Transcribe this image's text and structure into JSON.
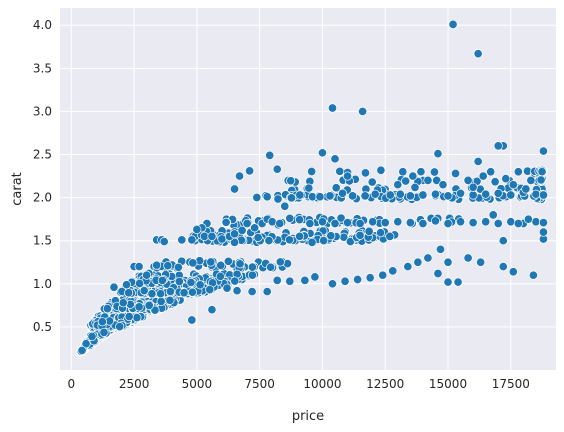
{
  "chart_data": {
    "type": "scatter",
    "title": "",
    "xlabel": "price",
    "ylabel": "carat",
    "xlim": [
      -450,
      19300
    ],
    "ylim": [
      0.0,
      4.2
    ],
    "xticks": [
      0,
      2500,
      5000,
      7500,
      10000,
      12500,
      15000,
      17500
    ],
    "yticks": [
      0.5,
      1.0,
      1.5,
      2.0,
      2.5,
      3.0,
      3.5,
      4.0
    ],
    "xtick_labels": [
      "0",
      "2500",
      "5000",
      "7500",
      "10000",
      "12500",
      "15000",
      "17500"
    ],
    "ytick_labels": [
      "0.5",
      "1.0",
      "1.5",
      "2.0",
      "2.5",
      "3.0",
      "3.5",
      "4.0"
    ],
    "grid": true,
    "legend": "none",
    "colors": {
      "background": "#eaeaf2",
      "grid": "#ffffff",
      "marker": "#1f77b4",
      "marker_edge": "#ffffff",
      "text": "#262626"
    },
    "points": [
      [
        15200,
        4.01
      ],
      [
        16200,
        3.67
      ],
      [
        10400,
        3.04
      ],
      [
        11600,
        3.0
      ],
      [
        10000,
        2.52
      ],
      [
        10500,
        2.45
      ],
      [
        7900,
        2.49
      ],
      [
        8200,
        2.33
      ],
      [
        6700,
        2.25
      ],
      [
        6500,
        2.1
      ],
      [
        7100,
        2.31
      ],
      [
        14600,
        2.51
      ],
      [
        17200,
        2.6
      ],
      [
        17000,
        2.6
      ],
      [
        16200,
        2.42
      ],
      [
        18800,
        2.54
      ],
      [
        11000,
        2.25
      ],
      [
        3400,
        1.51
      ],
      [
        3600,
        1.51
      ],
      [
        3700,
        1.49
      ],
      [
        4400,
        1.51
      ],
      [
        4800,
        1.51
      ],
      [
        5400,
        1.7
      ],
      [
        5200,
        1.65
      ],
      [
        5000,
        1.63
      ],
      [
        5300,
        1.55
      ],
      [
        5600,
        1.55
      ],
      [
        6000,
        1.52
      ],
      [
        6300,
        1.55
      ],
      [
        6500,
        1.58
      ],
      [
        6800,
        1.62
      ],
      [
        7000,
        1.7
      ],
      [
        7300,
        1.65
      ],
      [
        7600,
        1.7
      ],
      [
        7800,
        1.75
      ],
      [
        8000,
        1.72
      ],
      [
        8300,
        1.7
      ],
      [
        8700,
        1.76
      ],
      [
        7800,
        2.01
      ],
      [
        8500,
        1.9
      ],
      [
        9100,
        2.03
      ],
      [
        9600,
        2.01
      ],
      [
        9900,
        2.01
      ],
      [
        10300,
        2.02
      ],
      [
        10800,
        2.05
      ],
      [
        11200,
        2.02
      ],
      [
        11700,
        2.02
      ],
      [
        12100,
        2.04
      ],
      [
        12700,
        2.03
      ],
      [
        13100,
        2.04
      ],
      [
        13500,
        2.02
      ],
      [
        14000,
        2.03
      ],
      [
        14500,
        2.04
      ],
      [
        15000,
        2.02
      ],
      [
        15500,
        2.05
      ],
      [
        16000,
        2.03
      ],
      [
        16500,
        2.04
      ],
      [
        17000,
        2.05
      ],
      [
        17500,
        2.03
      ],
      [
        18000,
        2.06
      ],
      [
        18500,
        2.04
      ],
      [
        18800,
        2.03
      ],
      [
        13200,
        2.3
      ],
      [
        13600,
        2.25
      ],
      [
        14200,
        2.2
      ],
      [
        15300,
        2.28
      ],
      [
        15800,
        2.2
      ],
      [
        16400,
        2.25
      ],
      [
        16700,
        2.3
      ],
      [
        17300,
        2.22
      ],
      [
        17800,
        2.3
      ],
      [
        18300,
        2.2
      ],
      [
        13000,
        2.15
      ],
      [
        14800,
        2.15
      ],
      [
        16000,
        2.12
      ],
      [
        17600,
        2.15
      ],
      [
        18100,
        2.1
      ],
      [
        9500,
        1.7
      ],
      [
        10000,
        1.72
      ],
      [
        10500,
        1.7
      ],
      [
        11000,
        1.71
      ],
      [
        11500,
        1.7
      ],
      [
        12000,
        1.72
      ],
      [
        12500,
        1.71
      ],
      [
        13000,
        1.72
      ],
      [
        13500,
        1.71
      ],
      [
        14000,
        1.7
      ],
      [
        14500,
        1.73
      ],
      [
        15000,
        1.7
      ],
      [
        15500,
        1.72
      ],
      [
        16000,
        1.71
      ],
      [
        16500,
        1.72
      ],
      [
        17000,
        1.7
      ],
      [
        17500,
        1.72
      ],
      [
        18000,
        1.7
      ],
      [
        18500,
        1.72
      ],
      [
        18800,
        1.71
      ],
      [
        15000,
        1.02
      ],
      [
        15400,
        1.02
      ],
      [
        14600,
        1.12
      ],
      [
        15000,
        1.25
      ],
      [
        15800,
        1.3
      ],
      [
        16300,
        1.25
      ],
      [
        17200,
        1.2
      ],
      [
        17600,
        1.14
      ],
      [
        18400,
        1.1
      ],
      [
        18800,
        1.52
      ],
      [
        18800,
        1.6
      ],
      [
        16800,
        1.8
      ],
      [
        17200,
        1.5
      ],
      [
        17800,
        1.7
      ],
      [
        18200,
        1.75
      ],
      [
        10400,
        1.0
      ],
      [
        10900,
        1.03
      ],
      [
        11400,
        1.05
      ],
      [
        11900,
        1.07
      ],
      [
        12400,
        1.1
      ],
      [
        12800,
        1.15
      ],
      [
        13400,
        1.2
      ],
      [
        13800,
        1.25
      ],
      [
        14200,
        1.3
      ],
      [
        14700,
        1.4
      ],
      [
        9300,
        1.04
      ],
      [
        9700,
        1.08
      ],
      [
        8700,
        1.03
      ],
      [
        8200,
        1.04
      ],
      [
        5600,
        0.7
      ],
      [
        4800,
        0.58
      ],
      [
        7800,
        0.91
      ],
      [
        7200,
        0.91
      ],
      [
        6600,
        0.92
      ],
      [
        6200,
        0.95
      ],
      [
        1700,
        0.96
      ],
      [
        2200,
        0.99
      ],
      [
        2500,
        1.2
      ],
      [
        2700,
        1.2
      ],
      [
        3000,
        1.1
      ]
    ]
  }
}
